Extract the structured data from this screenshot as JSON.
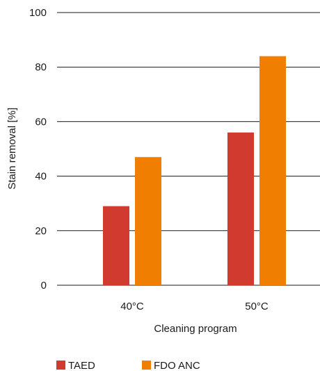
{
  "chart_data": {
    "type": "bar",
    "categories": [
      "40°C",
      "50°C"
    ],
    "series": [
      {
        "name": "TAED",
        "values": [
          29,
          56
        ],
        "color": "#d13a2f"
      },
      {
        "name": "FDO ANC",
        "values": [
          47,
          84
        ],
        "color": "#f07e00"
      }
    ],
    "xlabel": "Cleaning program",
    "ylabel": "Stain removal [%]",
    "ylim": [
      0,
      100
    ],
    "yticks": [
      0,
      20,
      40,
      60,
      80,
      100
    ],
    "grid": true,
    "legend_position": "bottom"
  }
}
